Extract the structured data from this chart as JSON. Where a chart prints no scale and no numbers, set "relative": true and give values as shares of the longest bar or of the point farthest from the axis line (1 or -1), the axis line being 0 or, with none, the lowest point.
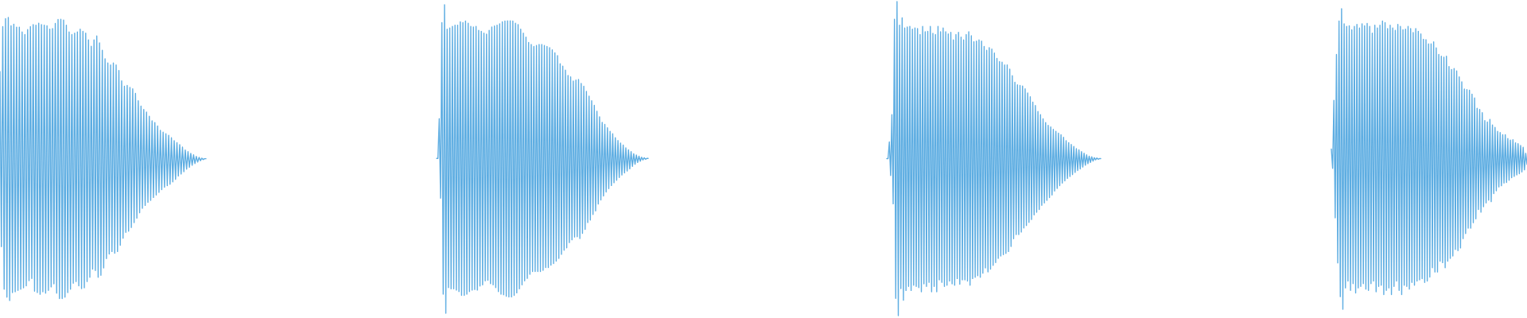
{
  "chart_data": [
    {
      "type": "line",
      "relative": true,
      "categories": [
        null,
        null,
        null,
        null,
        null,
        null,
        null,
        null,
        null,
        null,
        null,
        null,
        null,
        null,
        null,
        null,
        null,
        null,
        null,
        null,
        null,
        null,
        null,
        null,
        null,
        null,
        null,
        null,
        null,
        null,
        null,
        null,
        null,
        null,
        null,
        null,
        null,
        null,
        null,
        null,
        null,
        null,
        null,
        null,
        null,
        null,
        null,
        null,
        null,
        null,
        null,
        null,
        null,
        null,
        null,
        null,
        null,
        null,
        null,
        null,
        null,
        null,
        null,
        null,
        null,
        null,
        null,
        null,
        null,
        null,
        null,
        null,
        null,
        null,
        null,
        null,
        null,
        null,
        null,
        null,
        null,
        null,
        null,
        null,
        null,
        null,
        null,
        null,
        null,
        null,
        null,
        null,
        null,
        null,
        null,
        null,
        null,
        null,
        null,
        null,
        null,
        null,
        null,
        null,
        null,
        null,
        null,
        null,
        null,
        null,
        null,
        null,
        null,
        null,
        null,
        null,
        null,
        null,
        null,
        null,
        null,
        null,
        null,
        null,
        null,
        null,
        null,
        null,
        null,
        null,
        null,
        null,
        null,
        null,
        null,
        null,
        null,
        null,
        null,
        null,
        null,
        null,
        null,
        null,
        null,
        null,
        null,
        null,
        null,
        null
      ],
      "series": [
        {
          "color": "#5dade2",
          "values": [
            0.809,
            0.19,
            0.968,
            0.04,
            0.996,
            0.012,
            1.0,
            0,
            0.971,
            0.028,
            0.976,
            0.031,
            0.966,
            0.036,
            0.966,
            0.04,
            0.949,
            0.045,
            0.94,
            0.052,
            0.957,
            0.07,
            0.968,
            0.078,
            0.975,
            0.033,
            0.973,
            0.028,
            0.98,
            0.022,
            0.975,
            0.031,
            0.973,
            0.026,
            0.971,
            0.036,
            0.959,
            0.048,
            0.961,
            0.059,
            0.979,
            0.026,
            0.993,
            0.007,
            0.994,
            0.007,
            0.991,
            0.012,
            0.973,
            0.028,
            0.949,
            0.04,
            0.94,
            0.061,
            0.945,
            0.067,
            0.949,
            0.052,
            0.959,
            0.042,
            0.951,
            0.045,
            0.945,
            0.067,
            0.921,
            0.082,
            0.898,
            0.111,
            0.921,
            0.106,
            0.935,
            0.082,
            0.91,
            0.089,
            0.884,
            0.115,
            0.854,
            0.148,
            0.839,
            0.164,
            0.832,
            0.173,
            0.839,
            0.167,
            0.832,
            0.173,
            0.813,
            0.195,
            0.776,
            0.22,
            0.757,
            0.241,
            0.76,
            0.245,
            0.753,
            0.258,
            0.748,
            0.275,
            0.732,
            0.291,
            0.706,
            0.31,
            0.687,
            0.326,
            0.675,
            0.336,
            0.666,
            0.347,
            0.651,
            0.354,
            0.635,
            0.364,
            0.629,
            0.373,
            0.617,
            0.382,
            0.601,
            0.392,
            0.595,
            0.4,
            0.589,
            0.406,
            0.584,
            0.411,
            0.575,
            0.419,
            0.565,
            0.428,
            0.558,
            0.44,
            0.551,
            0.447,
            0.542,
            0.455,
            0.532,
            0.464,
            0.526,
            0.471,
            0.52,
            0.478,
            0.515,
            0.484,
            0.509,
            0.489,
            0.506,
            0.494,
            0.503,
            0.498,
            0.501,
            0.501
          ]
        }
      ]
    },
    {
      "type": "line",
      "relative": true,
      "categories": [
        null,
        null,
        null,
        null,
        null,
        null,
        null,
        null,
        null,
        null,
        null,
        null,
        null,
        null,
        null,
        null,
        null,
        null,
        null,
        null,
        null,
        null,
        null,
        null,
        null,
        null,
        null,
        null,
        null,
        null,
        null,
        null,
        null,
        null,
        null,
        null,
        null,
        null,
        null,
        null,
        null,
        null,
        null,
        null,
        null,
        null,
        null,
        null,
        null,
        null,
        null,
        null,
        null,
        null,
        null,
        null,
        null,
        null,
        null,
        null,
        null,
        null,
        null,
        null,
        null,
        null,
        null,
        null,
        null,
        null,
        null,
        null,
        null,
        null,
        null,
        null,
        null,
        null,
        null,
        null,
        null,
        null,
        null,
        null,
        null,
        null,
        null,
        null,
        null,
        null,
        null,
        null,
        null,
        null,
        null,
        null,
        null,
        null,
        null,
        null,
        null,
        null,
        null,
        null,
        null,
        null,
        null,
        null,
        null,
        null,
        null,
        null,
        null,
        null,
        null,
        null,
        null,
        null,
        null,
        null,
        null,
        null,
        null,
        null,
        null,
        null,
        null,
        null,
        null,
        null,
        null,
        null,
        null,
        null,
        null,
        null,
        null,
        null,
        null,
        null,
        null,
        null,
        null,
        null,
        null,
        null,
        null,
        null,
        null,
        null,
        null,
        null,
        null,
        null,
        null,
        null,
        null,
        null,
        null,
        null,
        null,
        null
      ],
      "series": [
        {
          "color": "#5dade2",
          "values": [
            0.502,
            0.502,
            0.631,
            0.373,
            0.942,
            0.062,
            1.0,
            0,
            0.921,
            0.083,
            0.925,
            0.079,
            0.93,
            0.079,
            0.934,
            0.075,
            0.934,
            0.07,
            0.945,
            0.058,
            0.942,
            0.058,
            0.947,
            0.062,
            0.94,
            0.07,
            0.93,
            0.075,
            0.928,
            0.077,
            0.93,
            0.075,
            0.917,
            0.088,
            0.914,
            0.092,
            0.908,
            0.105,
            0.905,
            0.107,
            0.917,
            0.096,
            0.928,
            0.092,
            0.931,
            0.083,
            0.934,
            0.07,
            0.938,
            0.062,
            0.945,
            0.06,
            0.947,
            0.055,
            0.948,
            0.053,
            0.948,
            0.053,
            0.947,
            0.058,
            0.94,
            0.066,
            0.936,
            0.079,
            0.921,
            0.092,
            0.908,
            0.105,
            0.895,
            0.113,
            0.878,
            0.126,
            0.871,
            0.135,
            0.865,
            0.135,
            0.868,
            0.135,
            0.871,
            0.135,
            0.871,
            0.139,
            0.868,
            0.148,
            0.865,
            0.148,
            0.861,
            0.156,
            0.854,
            0.161,
            0.844,
            0.169,
            0.835,
            0.178,
            0.809,
            0.191,
            0.801,
            0.204,
            0.788,
            0.212,
            0.771,
            0.229,
            0.766,
            0.238,
            0.753,
            0.247,
            0.756,
            0.248,
            0.758,
            0.242,
            0.745,
            0.259,
            0.736,
            0.272,
            0.719,
            0.294,
            0.704,
            0.302,
            0.689,
            0.32,
            0.674,
            0.332,
            0.655,
            0.354,
            0.637,
            0.367,
            0.619,
            0.38,
            0.612,
            0.393,
            0.601,
            0.404,
            0.59,
            0.414,
            0.582,
            0.423,
            0.569,
            0.431,
            0.56,
            0.44,
            0.552,
            0.448,
            0.545,
            0.455,
            0.536,
            0.461,
            0.53,
            0.468,
            0.524,
            0.476,
            0.517,
            0.483,
            0.513,
            0.489,
            0.509,
            0.493,
            0.506,
            0.497,
            0.504,
            0.499,
            0.502,
            0.502
          ]
        }
      ]
    },
    {
      "type": "line",
      "relative": true,
      "categories": [
        null,
        null,
        null,
        null,
        null,
        null,
        null,
        null,
        null,
        null,
        null,
        null,
        null,
        null,
        null,
        null,
        null,
        null,
        null,
        null,
        null,
        null,
        null,
        null,
        null,
        null,
        null,
        null,
        null,
        null,
        null,
        null,
        null,
        null,
        null,
        null,
        null,
        null,
        null,
        null,
        null,
        null,
        null,
        null,
        null,
        null,
        null,
        null,
        null,
        null,
        null,
        null,
        null,
        null,
        null,
        null,
        null,
        null,
        null,
        null,
        null,
        null,
        null,
        null,
        null,
        null,
        null,
        null,
        null,
        null,
        null,
        null,
        null,
        null,
        null,
        null,
        null,
        null,
        null,
        null,
        null,
        null,
        null,
        null,
        null,
        null,
        null,
        null,
        null,
        null,
        null,
        null,
        null,
        null,
        null,
        null,
        null,
        null,
        null,
        null,
        null,
        null,
        null,
        null,
        null,
        null,
        null,
        null,
        null,
        null,
        null,
        null,
        null,
        null,
        null,
        null,
        null,
        null,
        null,
        null,
        null,
        null,
        null,
        null,
        null,
        null,
        null,
        null,
        null,
        null,
        null,
        null,
        null,
        null,
        null,
        null,
        null,
        null,
        null,
        null,
        null,
        null,
        null,
        null,
        null,
        null,
        null,
        null,
        null,
        null,
        null,
        null,
        null,
        null,
        null,
        null,
        null,
        null,
        null,
        null,
        null,
        null,
        null,
        null,
        null,
        null,
        null,
        null
      ],
      "series": [
        {
          "color": "#5dade2",
          "values": [
            0.5,
            0.5,
            0.553,
            0.446,
            0.64,
            0.356,
            0.944,
            0.055,
            1.0,
            0,
            0.925,
            0.086,
            0.948,
            0.049,
            0.916,
            0.08,
            0.919,
            0.093,
            0.921,
            0.08,
            0.912,
            0.097,
            0.916,
            0.093,
            0.914,
            0.089,
            0.895,
            0.076,
            0.921,
            0.101,
            0.904,
            0.093,
            0.905,
            0.106,
            0.921,
            0.076,
            0.899,
            0.093,
            0.895,
            0.076,
            0.921,
            0.114,
            0.904,
            0.106,
            0.916,
            0.093,
            0.904,
            0.097,
            0.897,
            0.11,
            0.902,
            0.101,
            0.878,
            0.097,
            0.895,
            0.118,
            0.902,
            0.1,
            0.887,
            0.114,
            0.878,
            0.114,
            0.895,
            0.11,
            0.904,
            0.097,
            0.891,
            0.118,
            0.872,
            0.122,
            0.874,
            0.127,
            0.878,
            0.122,
            0.874,
            0.135,
            0.857,
            0.152,
            0.845,
            0.139,
            0.853,
            0.148,
            0.849,
            0.16,
            0.836,
            0.169,
            0.819,
            0.182,
            0.809,
            0.19,
            0.807,
            0.194,
            0.798,
            0.198,
            0.798,
            0.204,
            0.785,
            0.22,
            0.764,
            0.245,
            0.743,
            0.258,
            0.735,
            0.258,
            0.733,
            0.266,
            0.731,
            0.279,
            0.722,
            0.287,
            0.709,
            0.297,
            0.697,
            0.306,
            0.68,
            0.321,
            0.669,
            0.329,
            0.65,
            0.338,
            0.64,
            0.351,
            0.627,
            0.359,
            0.615,
            0.367,
            0.606,
            0.376,
            0.601,
            0.384,
            0.593,
            0.397,
            0.587,
            0.405,
            0.581,
            0.414,
            0.576,
            0.422,
            0.568,
            0.429,
            0.557,
            0.437,
            0.551,
            0.443,
            0.545,
            0.449,
            0.539,
            0.456,
            0.532,
            0.462,
            0.528,
            0.467,
            0.522,
            0.473,
            0.517,
            0.479,
            0.512,
            0.484,
            0.508,
            0.488,
            0.506,
            0.492,
            0.503,
            0.496,
            0.502,
            0.498,
            0.5,
            0.5
          ]
        }
      ]
    },
    {
      "type": "line",
      "relative": true,
      "categories": [
        null,
        null,
        null,
        null,
        null,
        null,
        null,
        null,
        null,
        null,
        null,
        null,
        null,
        null,
        null,
        null,
        null,
        null,
        null,
        null,
        null,
        null,
        null,
        null,
        null,
        null,
        null,
        null,
        null,
        null,
        null,
        null,
        null,
        null,
        null,
        null,
        null,
        null,
        null,
        null,
        null,
        null,
        null,
        null,
        null,
        null,
        null,
        null,
        null,
        null,
        null,
        null,
        null,
        null,
        null,
        null,
        null,
        null,
        null,
        null,
        null,
        null,
        null,
        null,
        null,
        null,
        null,
        null,
        null,
        null,
        null,
        null,
        null,
        null,
        null,
        null,
        null,
        null,
        null,
        null,
        null,
        null,
        null,
        null,
        null,
        null,
        null,
        null,
        null,
        null,
        null,
        null,
        null,
        null,
        null,
        null,
        null,
        null,
        null,
        null,
        null,
        null,
        null,
        null,
        null,
        null,
        null,
        null,
        null,
        null,
        null,
        null,
        null,
        null,
        null,
        null,
        null,
        null,
        null,
        null,
        null,
        null,
        null,
        null,
        null,
        null,
        null,
        null,
        null,
        null,
        null,
        null,
        null,
        null,
        null,
        null,
        null,
        null,
        null,
        null,
        null,
        null,
        null,
        null,
        null,
        null,
        null,
        null,
        null,
        null,
        null,
        null,
        null,
        null
      ],
      "series": [
        {
          "color": "#5dade2",
          "values": [
            0.533,
            0.469,
            0.695,
            0.304,
            0.848,
            0.154,
            0.959,
            0.042,
            1.0,
            0,
            0.95,
            0.071,
            0.941,
            0.094,
            0.943,
            0.063,
            0.93,
            0.085,
            0.941,
            0.054,
            0.948,
            0.071,
            0.936,
            0.076,
            0.95,
            0.085,
            0.943,
            0.067,
            0.951,
            0.063,
            0.941,
            0.085,
            0.919,
            0.094,
            0.945,
            0.058,
            0.936,
            0.076,
            0.945,
            0.08,
            0.959,
            0.049,
            0.954,
            0.063,
            0.934,
            0.071,
            0.945,
            0.049,
            0.936,
            0.076,
            0.928,
            0.094,
            0.948,
            0.063,
            0.941,
            0.049,
            0.93,
            0.08,
            0.932,
            0.076,
            0.941,
            0.067,
            0.934,
            0.089,
            0.921,
            0.08,
            0.934,
            0.094,
            0.925,
            0.098,
            0.916,
            0.102,
            0.898,
            0.089,
            0.897,
            0.094,
            0.883,
            0.107,
            0.883,
            0.138,
            0.89,
            0.124,
            0.87,
            0.124,
            0.848,
            0.16,
            0.842,
            0.155,
            0.839,
            0.138,
            0.842,
            0.16,
            0.808,
            0.169,
            0.798,
            0.177,
            0.801,
            0.199,
            0.793,
            0.195,
            0.773,
            0.204,
            0.757,
            0.235,
            0.733,
            0.252,
            0.731,
            0.27,
            0.729,
            0.27,
            0.716,
            0.288,
            0.703,
            0.301,
            0.669,
            0.332,
            0.665,
            0.323,
            0.654,
            0.341,
            0.628,
            0.354,
            0.623,
            0.363,
            0.632,
            0.358,
            0.613,
            0.385,
            0.605,
            0.394,
            0.592,
            0.407,
            0.588,
            0.411,
            0.581,
            0.42,
            0.581,
            0.422,
            0.568,
            0.429,
            0.563,
            0.438,
            0.564,
            0.442,
            0.554,
            0.447,
            0.551,
            0.451,
            0.545,
            0.457,
            0.539,
            0.464,
            0.519,
            0.482
          ]
        }
      ]
    }
  ]
}
